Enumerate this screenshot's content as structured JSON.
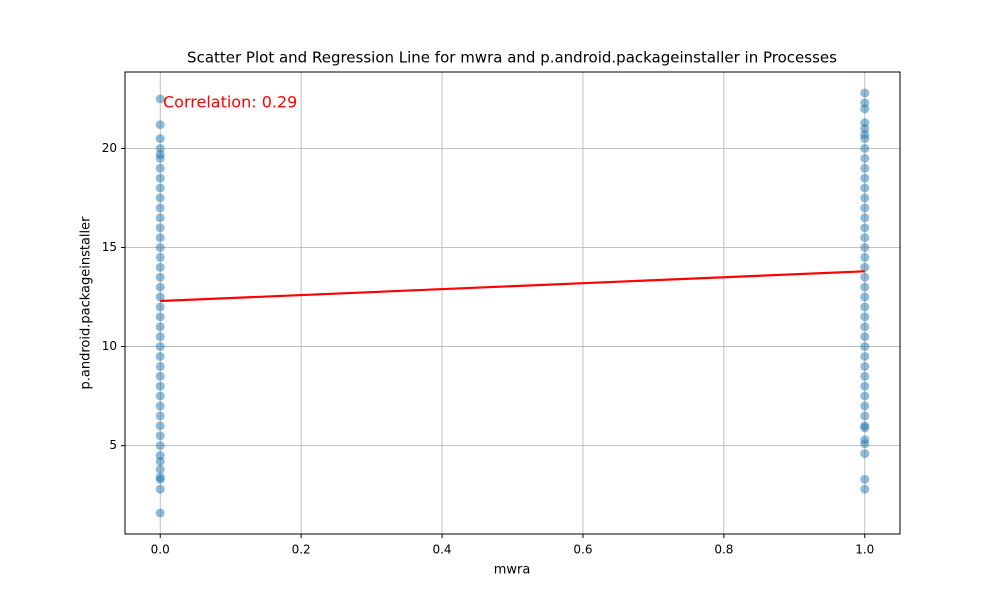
{
  "chart_data": {
    "type": "scatter",
    "title": "Scatter Plot and Regression Line for mwra and p.android.packageinstaller in Processes",
    "xlabel": "mwra",
    "ylabel": "p.android.packageinstaller",
    "annotation": "Correlation: 0.29",
    "annotation_color": "red",
    "xlim": [
      -0.05,
      1.05
    ],
    "xticks": [
      {
        "value": 0,
        "label": "0.0"
      },
      0.2,
      0.4,
      0.6,
      0.8,
      {
        "value": 1,
        "label": "1.0"
      }
    ],
    "ylim": [
      0.54,
      23.86
    ],
    "yticks": [
      5,
      10,
      15,
      20
    ],
    "grid": true,
    "points": {
      "color": "#1f77b4",
      "opacity": 0.5,
      "x": [
        0,
        0,
        0,
        0,
        0,
        0,
        0,
        0,
        0,
        0,
        0,
        0,
        0,
        0,
        0,
        0,
        0,
        0,
        0,
        0,
        0,
        0,
        0,
        0,
        0,
        0,
        0,
        0,
        0,
        0,
        0,
        0,
        0,
        0,
        0,
        0,
        0,
        0,
        0,
        0,
        0,
        0,
        1,
        1,
        1,
        1,
        1,
        1,
        1,
        1,
        1,
        1,
        1,
        1,
        1,
        1,
        1,
        1,
        1,
        1,
        1,
        1,
        1,
        1,
        1,
        1,
        1,
        1,
        1,
        1,
        1,
        1,
        1,
        1,
        1,
        1,
        1,
        1,
        1,
        1,
        1,
        1,
        1,
        1
      ],
      "y": [
        22.5,
        21.2,
        20.5,
        20.0,
        19.7,
        19.5,
        19,
        18.5,
        18,
        17.5,
        17,
        16.5,
        16,
        15.5,
        15,
        14.5,
        14,
        13.5,
        13,
        12.5,
        12,
        11.5,
        11,
        10.5,
        10,
        9.5,
        9,
        8.5,
        8,
        7.5,
        7,
        6.5,
        6,
        5.5,
        5,
        4.5,
        4.2,
        3.8,
        3.4,
        3.3,
        2.8,
        1.6,
        22.8,
        22.3,
        22.0,
        21.3,
        21.0,
        20.7,
        20.5,
        20,
        19.5,
        19,
        18.5,
        18,
        17.5,
        17,
        16.5,
        16,
        15.5,
        15,
        14.5,
        14,
        13.5,
        13,
        12.5,
        12,
        11.5,
        11,
        10.5,
        10,
        9.5,
        9,
        8.5,
        8,
        7.5,
        7,
        6.5,
        6,
        5.9,
        5.3,
        5.1,
        4.6,
        3.3,
        2.8
      ]
    },
    "regression_line": {
      "color": "red",
      "x": [
        0,
        1
      ],
      "y": [
        12.3,
        13.8
      ]
    }
  }
}
